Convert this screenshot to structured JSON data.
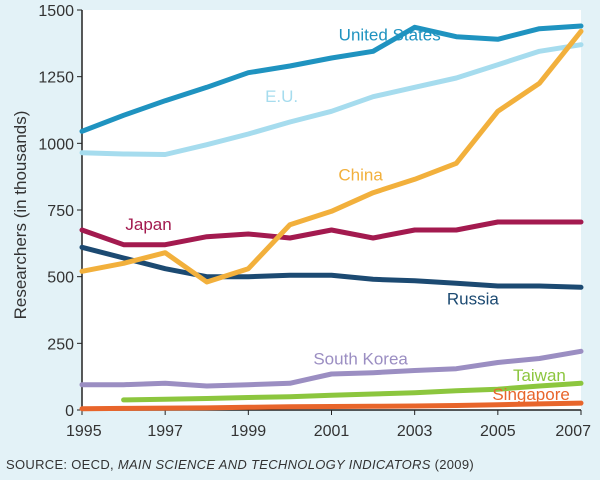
{
  "chart_data": {
    "type": "line",
    "ylabel": "Researchers (in thousands)",
    "xlabel": "",
    "x_ticks": [
      "1995",
      "1997",
      "1999",
      "2001",
      "2003",
      "2005",
      "2007"
    ],
    "y_ticks": [
      "0",
      "250",
      "500",
      "750",
      "1000",
      "1250",
      "1500"
    ],
    "xlim": [
      1995,
      2007
    ],
    "ylim": [
      0,
      1500
    ],
    "grid": false,
    "series": [
      {
        "name": "United States",
        "color": "#1f93c0",
        "x": [
          1995,
          1996,
          1997,
          1998,
          1999,
          2000,
          2001,
          2002,
          2003,
          2004,
          2005,
          2006,
          2007
        ],
        "values": [
          1045,
          1105,
          1160,
          1210,
          1265,
          1290,
          1320,
          1345,
          1435,
          1400,
          1390,
          1430,
          1440
        ]
      },
      {
        "name": "E.U.",
        "color": "#a6dcee",
        "x": [
          1995,
          1996,
          1997,
          1998,
          1999,
          2000,
          2001,
          2002,
          2003,
          2004,
          2005,
          2006,
          2007
        ],
        "values": [
          965,
          960,
          958,
          995,
          1035,
          1080,
          1120,
          1175,
          1210,
          1245,
          1295,
          1345,
          1370
        ]
      },
      {
        "name": "China",
        "color": "#f2b03c",
        "x": [
          1995,
          1996,
          1997,
          1998,
          1999,
          2000,
          2001,
          2002,
          2003,
          2004,
          2005,
          2006,
          2007
        ],
        "values": [
          520,
          550,
          590,
          480,
          530,
          695,
          745,
          815,
          865,
          925,
          1120,
          1225,
          1420
        ]
      },
      {
        "name": "Japan",
        "color": "#a31a4f",
        "x": [
          1995,
          1996,
          1997,
          1998,
          1999,
          2000,
          2001,
          2002,
          2003,
          2004,
          2005,
          2006,
          2007
        ],
        "values": [
          675,
          620,
          620,
          650,
          660,
          645,
          675,
          645,
          675,
          675,
          705,
          705,
          705
        ]
      },
      {
        "name": "Russia",
        "color": "#1c4a72",
        "x": [
          1995,
          1996,
          1997,
          1998,
          1999,
          2000,
          2001,
          2002,
          2003,
          2004,
          2005,
          2006,
          2007
        ],
        "values": [
          610,
          570,
          530,
          500,
          500,
          505,
          505,
          490,
          485,
          475,
          465,
          465,
          460
        ]
      },
      {
        "name": "South Korea",
        "color": "#9b8ec2",
        "x": [
          1995,
          1996,
          1997,
          1998,
          1999,
          2000,
          2001,
          2002,
          2003,
          2004,
          2005,
          2006,
          2007
        ],
        "values": [
          95,
          95,
          100,
          90,
          95,
          100,
          135,
          140,
          148,
          155,
          178,
          193,
          220
        ]
      },
      {
        "name": "Taiwan",
        "color": "#8cc63e",
        "x": [
          1996,
          1997,
          1998,
          1999,
          2000,
          2001,
          2002,
          2003,
          2004,
          2005,
          2006,
          2007
        ],
        "values": [
          38,
          40,
          43,
          47,
          50,
          55,
          60,
          65,
          72,
          78,
          90,
          100
        ]
      },
      {
        "name": "Singapore",
        "color": "#e8652b",
        "x": [
          1995,
          1996,
          1997,
          1998,
          1999,
          2000,
          2001,
          2002,
          2003,
          2004,
          2005,
          2006,
          2007
        ],
        "values": [
          5,
          6,
          7,
          8,
          10,
          12,
          13,
          14,
          15,
          17,
          20,
          23,
          26
        ]
      }
    ]
  },
  "source_text": {
    "prefix": "SOURCE: OECD, ",
    "title": "MAIN SCIENCE AND TECHNOLOGY INDICATORS",
    "suffix": " (2009)"
  }
}
